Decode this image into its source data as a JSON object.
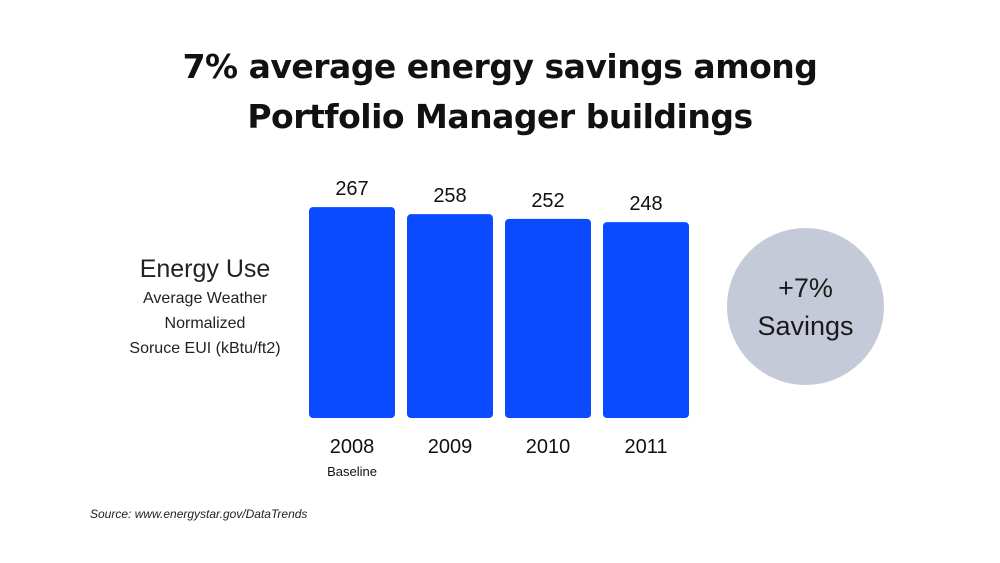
{
  "title_lines": [
    "7% average energy savings among",
    "Portfolio Manager buildings"
  ],
  "y_axis": {
    "main": "Energy Use",
    "sub_lines": [
      "Average Weather",
      "Normalized",
      "Soruce EUI (kBtu/ft2)"
    ]
  },
  "savings_badge": {
    "line1": "+7%",
    "line2": "Savings",
    "color": "#c5cad9"
  },
  "source": "Source: www.energystar.gov/DataTrends",
  "chart_data": {
    "type": "bar",
    "categories": [
      "2008",
      "2009",
      "2010",
      "2011"
    ],
    "category_notes": [
      "Baseline",
      "",
      "",
      ""
    ],
    "values": [
      267,
      258,
      252,
      248
    ],
    "bar_color": "#0a4bff",
    "title": "7% average energy savings among Portfolio Manager buildings",
    "ylabel": "Energy Use Average Weather Normalized Soruce EUI (kBtu/ft2)",
    "xlabel": ""
  }
}
